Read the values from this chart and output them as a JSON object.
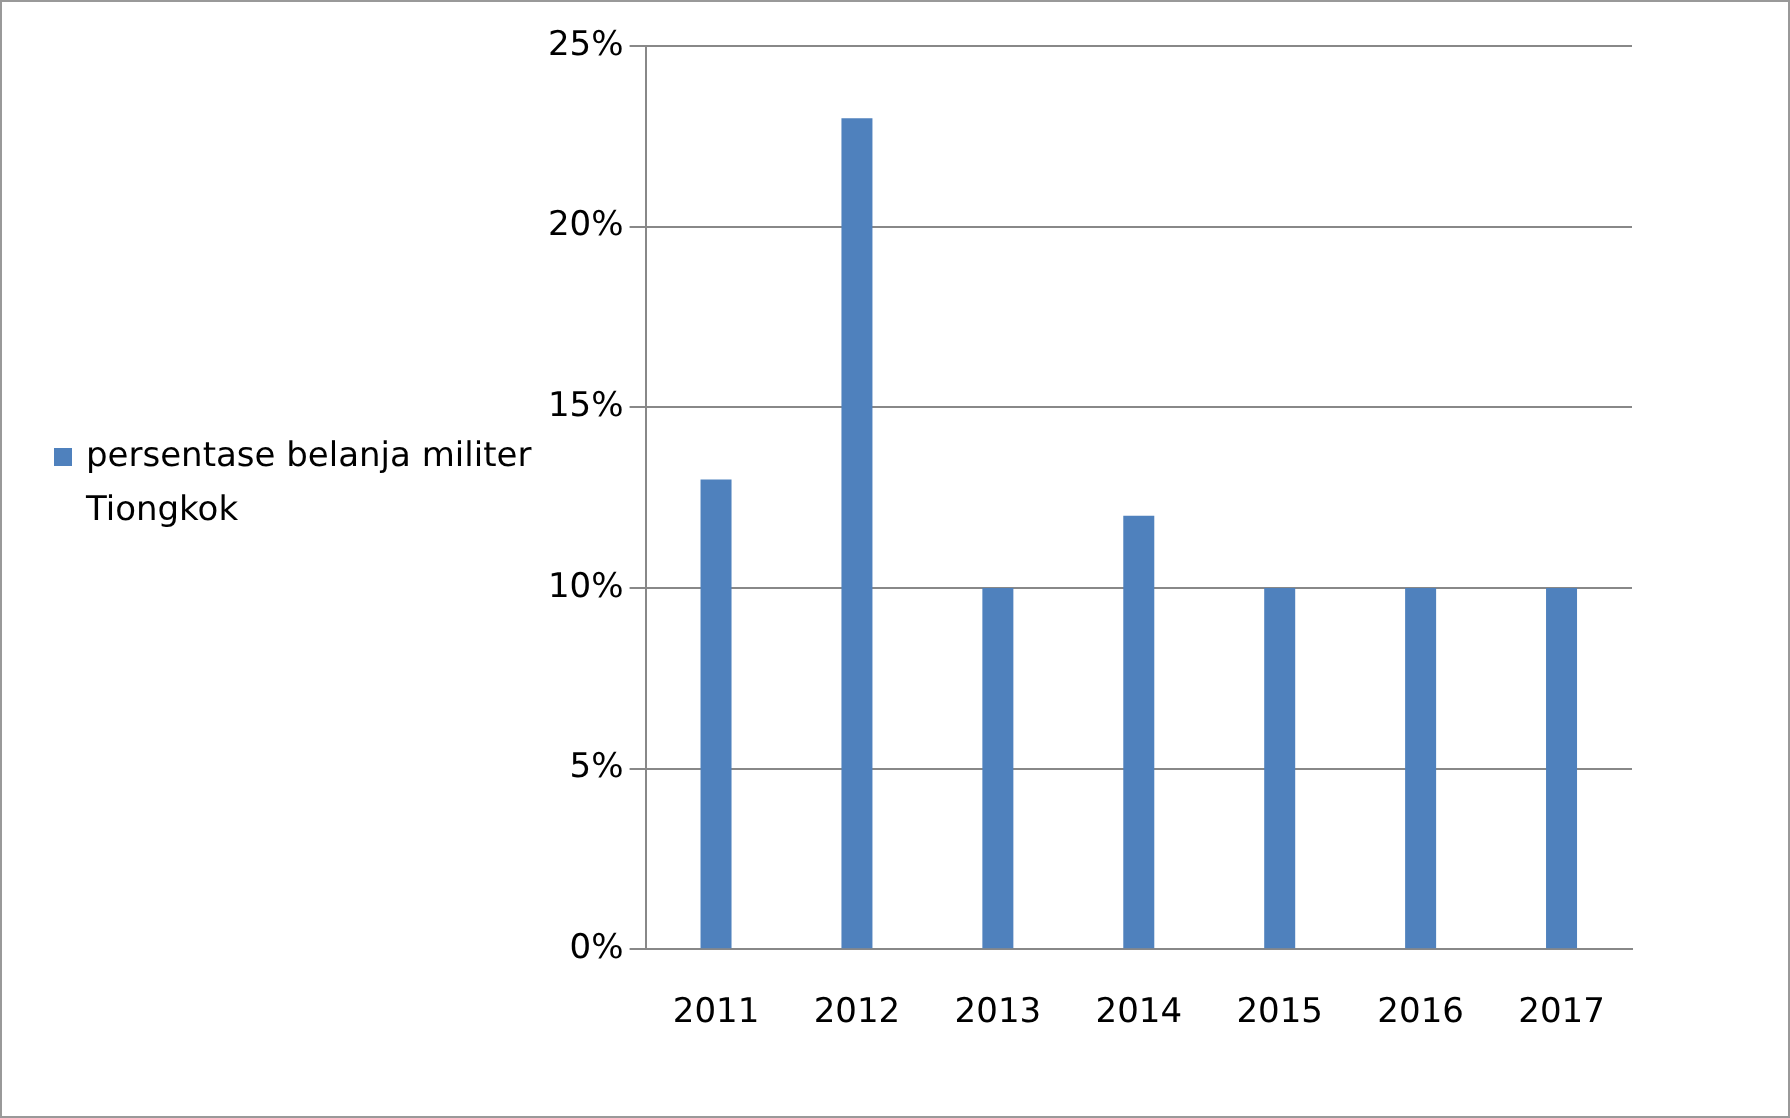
{
  "chart_data": {
    "type": "bar",
    "categories": [
      "2011",
      "2012",
      "2013",
      "2014",
      "2015",
      "2016",
      "2017"
    ],
    "series": [
      {
        "name": "persentase belanja militer Tiongkok",
        "color": "#4f81bd",
        "values": [
          13,
          23,
          10,
          12,
          10,
          10,
          10
        ]
      }
    ],
    "ylim": [
      0,
      25
    ],
    "yticks": [
      {
        "value": 0,
        "label": "0%"
      },
      {
        "value": 5,
        "label": "5%"
      },
      {
        "value": 10,
        "label": "10%"
      },
      {
        "value": 15,
        "label": "15%"
      },
      {
        "value": 20,
        "label": "20%"
      },
      {
        "value": 25,
        "label": "25%"
      }
    ],
    "grid": "y",
    "legend": "left"
  }
}
